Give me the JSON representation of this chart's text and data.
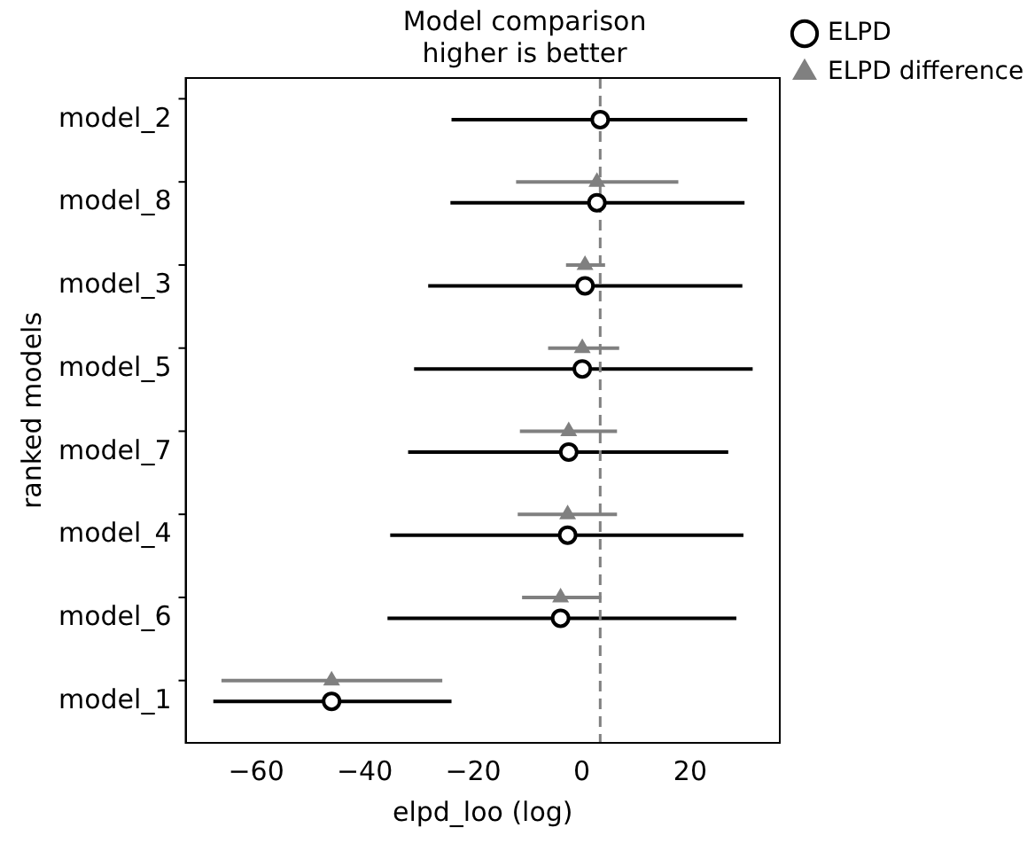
{
  "chart_data": {
    "type": "scatter",
    "orientation": "horizontal",
    "title": "Model comparison\nhigher is better",
    "xlabel": "elpd_loo (log)",
    "ylabel": "ranked models",
    "categories": [
      "model_2",
      "model_8",
      "model_3",
      "model_5",
      "model_7",
      "model_4",
      "model_6",
      "model_1"
    ],
    "series": [
      {
        "name": "ELPD",
        "color": "#000000",
        "marker": "circle",
        "values": [
          3.4,
          2.8,
          0.6,
          0.1,
          -2.4,
          -2.6,
          -3.9,
          -46.1
        ],
        "errors": [
          [
            -24,
            30.5
          ],
          [
            -24.2,
            30
          ],
          [
            -28.3,
            29.6
          ],
          [
            -30.9,
            31.5
          ],
          [
            -32,
            27
          ],
          [
            -35.3,
            29.8
          ],
          [
            -35.8,
            28.5
          ],
          [
            -67.9,
            -24
          ]
        ]
      },
      {
        "name": "ELPD difference",
        "color": "#808080",
        "marker": "triangle",
        "values": [
          null,
          2.8,
          0.6,
          0.1,
          -2.4,
          -2.6,
          -3.9,
          -46.1
        ],
        "errors": [
          null,
          [
            -12.1,
            17.8
          ],
          [
            -2.9,
            4.3
          ],
          [
            -6.2,
            6.9
          ],
          [
            -11.4,
            6.5
          ],
          [
            -11.8,
            6.5
          ],
          [
            -11,
            3.6
          ],
          [
            -66.4,
            -25.7
          ]
        ]
      }
    ],
    "xlim": [
      -73,
      36.5
    ],
    "xticks": [
      -60,
      -40,
      -20,
      0,
      20
    ],
    "ref_lines": [
      {
        "axis": "x",
        "value": 3.4,
        "color": "#808080",
        "line_style": "dashed"
      }
    ],
    "grid": false,
    "legend": "top right"
  }
}
